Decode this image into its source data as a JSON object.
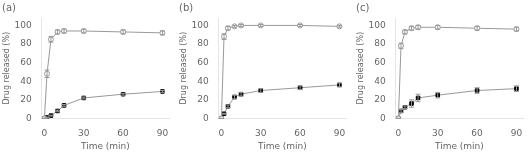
{
  "chart_data": [
    {
      "type": "line",
      "title": "(a)",
      "x": [
        0,
        2,
        5,
        10,
        15,
        30,
        60,
        90
      ],
      "series": [
        {
          "values": [
            0,
            48,
            85,
            93,
            94,
            94,
            93,
            92
          ],
          "errors": [
            0,
            4,
            3,
            2,
            2,
            2,
            2,
            2
          ],
          "color": "#999999",
          "marker": "circle"
        },
        {
          "values": [
            0,
            1,
            3,
            8,
            14,
            22,
            26,
            29
          ],
          "errors": [
            0,
            0.3,
            0.5,
            0.8,
            1.0,
            1.0,
            1.0,
            1.0
          ],
          "color": "#999999",
          "marker": "square"
        }
      ],
      "xlim": [
        -2,
        95
      ],
      "xticks": [
        0,
        30,
        60,
        90
      ],
      "ylim": [
        0,
        108
      ],
      "yticks": [
        0,
        20,
        40,
        60,
        80,
        100
      ],
      "xlabel": "Time (min)",
      "ylabel": "Drug released (%)",
      "grid": false
    },
    {
      "type": "line",
      "title": "(b)",
      "x": [
        0,
        2,
        5,
        10,
        15,
        30,
        60,
        90
      ],
      "series": [
        {
          "values": [
            0,
            88,
            97,
            99,
            100,
            100,
            100,
            99
          ],
          "errors": [
            0,
            3,
            2,
            1,
            1,
            1,
            1,
            1
          ],
          "color": "#999999",
          "marker": "circle"
        },
        {
          "values": [
            0,
            5,
            13,
            23,
            26,
            30,
            33,
            36
          ],
          "errors": [
            0,
            0.5,
            1.5,
            2,
            2,
            2,
            2,
            2
          ],
          "color": "#999999",
          "marker": "square"
        }
      ],
      "xlim": [
        -2,
        95
      ],
      "xticks": [
        0,
        30,
        60,
        90
      ],
      "ylim": [
        0,
        108
      ],
      "yticks": [
        0,
        20,
        40,
        60,
        80,
        100
      ],
      "xlabel": "Time (min)",
      "ylabel": "Drug released (%)",
      "grid": false
    },
    {
      "type": "line",
      "title": "(c)",
      "x": [
        0,
        2,
        5,
        10,
        15,
        30,
        60,
        90
      ],
      "series": [
        {
          "values": [
            0,
            78,
            93,
            97,
            98,
            98,
            97,
            96
          ],
          "errors": [
            0,
            3,
            2,
            2,
            2,
            2,
            2,
            2
          ],
          "color": "#999999",
          "marker": "circle"
        },
        {
          "values": [
            0,
            8,
            12,
            16,
            22,
            25,
            30,
            32
          ],
          "errors": [
            0,
            1.5,
            1.5,
            4,
            4,
            3,
            3,
            3
          ],
          "color": "#999999",
          "marker": "square"
        }
      ],
      "xlim": [
        -2,
        95
      ],
      "xticks": [
        0,
        30,
        60,
        90
      ],
      "ylim": [
        0,
        108
      ],
      "yticks": [
        0,
        20,
        40,
        60,
        80,
        100
      ],
      "xlabel": "Time (min)",
      "ylabel": "Drug released (%)",
      "grid": false
    }
  ]
}
